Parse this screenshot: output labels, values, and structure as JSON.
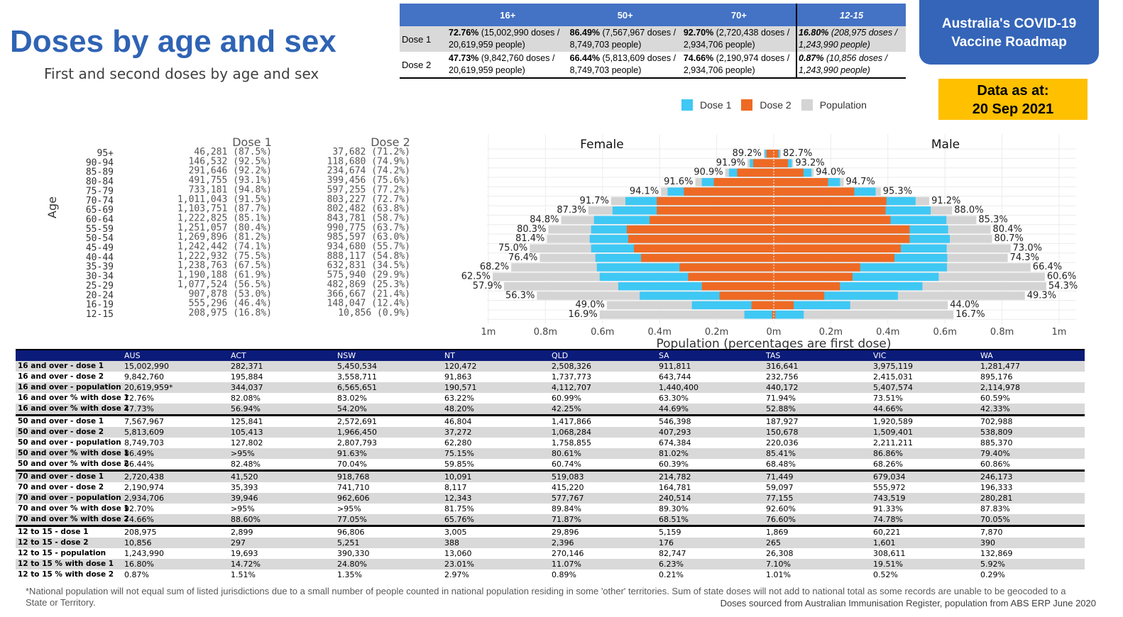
{
  "header": {
    "title": "Doses by age and sex",
    "subtitle": "First and second doses by age and sex",
    "roadmap_line1": "Australia's COVID-19",
    "roadmap_line2": "Vaccine Roadmap",
    "asat_line1": "Data as at:",
    "asat_line2": "20 Sep 2021"
  },
  "summary": {
    "columns": [
      "16+",
      "50+",
      "70+",
      "12-15"
    ],
    "rows": [
      {
        "label": "Dose 1",
        "cells": [
          {
            "pct": "72.76%",
            "rest": " (15,002,990 doses / 20,619,959 people)"
          },
          {
            "pct": "86.49%",
            "rest": " (7,567,967 doses / 8,749,703 people)"
          },
          {
            "pct": "92.70%",
            "rest": " (2,720,438 doses / 2,934,706 people)"
          },
          {
            "pct": "16.80%",
            "rest": " (208,975 doses / 1,243,990 people)"
          }
        ]
      },
      {
        "label": "Dose 2",
        "cells": [
          {
            "pct": "47.73%",
            "rest": " (9,842,760 doses / 20,619,959 people)"
          },
          {
            "pct": "66.44%",
            "rest": " (5,813,609 doses / 8,749,703 people)"
          },
          {
            "pct": "74.66%",
            "rest": " (2,190,974 doses / 2,934,706 people)"
          },
          {
            "pct": "0.87%",
            "rest": " (10,856 doses / 1,243,990 people)"
          }
        ]
      }
    ]
  },
  "legend": {
    "items": [
      {
        "label": "Dose 1",
        "color": "#3fc8f4"
      },
      {
        "label": "Dose 2",
        "color": "#ee6a24"
      },
      {
        "label": "Population",
        "color": "#d4d4d4"
      }
    ]
  },
  "age_table": {
    "y_label": "Age",
    "dose1_header": "Dose 1",
    "dose2_header": "Dose 2",
    "rows": [
      {
        "age": "95+",
        "dose1": "46,281 (87.5%)",
        "dose2": "37,682 (71.2%)"
      },
      {
        "age": "90-94",
        "dose1": "146,532 (92.5%)",
        "dose2": "118,680 (74.9%)"
      },
      {
        "age": "85-89",
        "dose1": "291,646 (92.2%)",
        "dose2": "234,674 (74.2%)"
      },
      {
        "age": "80-84",
        "dose1": "491,755 (93.1%)",
        "dose2": "399,456 (75.6%)"
      },
      {
        "age": "75-79",
        "dose1": "733,181 (94.8%)",
        "dose2": "597,255 (77.2%)"
      },
      {
        "age": "70-74",
        "dose1": "1,011,043 (91.5%)",
        "dose2": "803,227 (72.7%)"
      },
      {
        "age": "65-69",
        "dose1": "1,103,751 (87.7%)",
        "dose2": "802,482 (63.8%)"
      },
      {
        "age": "60-64",
        "dose1": "1,222,825 (85.1%)",
        "dose2": "843,781 (58.7%)"
      },
      {
        "age": "55-59",
        "dose1": "1,251,057 (80.4%)",
        "dose2": "990,775 (63.7%)"
      },
      {
        "age": "50-54",
        "dose1": "1,269,896 (81.2%)",
        "dose2": "985,597 (63.0%)"
      },
      {
        "age": "45-49",
        "dose1": "1,242,442 (74.1%)",
        "dose2": "934,680 (55.7%)"
      },
      {
        "age": "40-44",
        "dose1": "1,222,932 (75.5%)",
        "dose2": "888,117 (54.8%)"
      },
      {
        "age": "35-39",
        "dose1": "1,238,763 (67.5%)",
        "dose2": "632,831 (34.5%)"
      },
      {
        "age": "30-34",
        "dose1": "1,190,188 (61.9%)",
        "dose2": "575,940 (29.9%)"
      },
      {
        "age": "25-29",
        "dose1": "1,077,524 (56.5%)",
        "dose2": "482,869 (25.3%)"
      },
      {
        "age": "20-24",
        "dose1": "907,878 (53.0%)",
        "dose2": "366,667 (21.4%)"
      },
      {
        "age": "16-19",
        "dose1": "555,296 (46.4%)",
        "dose2": "148,047 (12.4%)"
      },
      {
        "age": "12-15",
        "dose1": "208,975 (16.8%)",
        "dose2": "10,856 (0.9%)"
      }
    ]
  },
  "chart_data": {
    "type": "bar",
    "orientation": "horizontal-population-pyramid",
    "title_left": "Female",
    "title_right": "Male",
    "xlabel": "Population (percentages are first dose)",
    "x_ticks": [
      "1m",
      "0.8m",
      "0.6m",
      "0.4m",
      "0.2m",
      "0m",
      "0.2m",
      "0.4m",
      "0.6m",
      "0.8m",
      "1m"
    ],
    "xlim": [
      -1000000,
      1000000
    ],
    "categories": [
      "95+",
      "90-94",
      "85-89",
      "80-84",
      "75-79",
      "70-74",
      "65-69",
      "60-64",
      "55-59",
      "50-54",
      "45-49",
      "40-44",
      "35-39",
      "30-34",
      "25-29",
      "20-24",
      "16-19",
      "12-15"
    ],
    "female": {
      "population": [
        35000,
        92000,
        170000,
        275000,
        395000,
        570000,
        650000,
        745000,
        790000,
        795000,
        855000,
        820000,
        920000,
        985000,
        945000,
        830000,
        585000,
        610000
      ],
      "dose1": [
        31000,
        84000,
        157000,
        252000,
        372000,
        520000,
        565000,
        630000,
        640000,
        645000,
        640000,
        625000,
        620000,
        610000,
        545000,
        470000,
        287000,
        103000
      ],
      "dose2": [
        25000,
        72000,
        128000,
        210000,
        315000,
        410000,
        410000,
        435000,
        515000,
        510000,
        490000,
        465000,
        330000,
        300000,
        252000,
        190000,
        78000,
        6000
      ],
      "pct": [
        "89.2%",
        "91.9%",
        "90.9%",
        "91.6%",
        "94.1%",
        "91.7%",
        "87.3%",
        "84.8%",
        "80.3%",
        "81.4%",
        "75.0%",
        "76.4%",
        "68.2%",
        "62.5%",
        "57.9%",
        "56.3%",
        "49.0%",
        "16.9%"
      ]
    },
    "male": {
      "population": [
        25000,
        68000,
        140000,
        245000,
        375000,
        545000,
        625000,
        710000,
        760000,
        765000,
        830000,
        820000,
        900000,
        950000,
        955000,
        880000,
        610000,
        630000
      ],
      "dose1": [
        21000,
        63000,
        132000,
        232000,
        357000,
        497000,
        550000,
        605000,
        611000,
        617000,
        606000,
        608000,
        607000,
        578000,
        521000,
        435000,
        268000,
        105000
      ],
      "dose2": [
        16000,
        50000,
        104000,
        190000,
        282000,
        395000,
        392000,
        409000,
        476000,
        476000,
        445000,
        423000,
        303000,
        276000,
        232000,
        177000,
        70000,
        5000
      ],
      "pct": [
        "82.7%",
        "93.2%",
        "94.0%",
        "94.7%",
        "95.3%",
        "91.2%",
        "88.0%",
        "85.3%",
        "80.4%",
        "80.7%",
        "73.0%",
        "74.3%",
        "66.4%",
        "60.6%",
        "54.3%",
        "49.3%",
        "44.0%",
        "16.7%"
      ]
    }
  },
  "details": {
    "columns": [
      "",
      "AUS",
      "ACT",
      "NSW",
      "NT",
      "QLD",
      "SA",
      "TAS",
      "VIC",
      "WA"
    ],
    "rows": [
      {
        "label": "16 and over - dose 1",
        "values": [
          "15,002,990",
          "282,371",
          "5,450,534",
          "120,472",
          "2,508,326",
          "911,811",
          "316,641",
          "3,975,119",
          "1,281,477"
        ]
      },
      {
        "label": "16 and over - dose 2",
        "values": [
          "9,842,760",
          "195,884",
          "3,558,711",
          "91,863",
          "1,737,773",
          "643,744",
          "232,756",
          "2,415,031",
          "895,176"
        ]
      },
      {
        "label": "16 and over - population",
        "values": [
          "20,619,959*",
          "344,037",
          "6,565,651",
          "190,571",
          "4,112,707",
          "1,440,400",
          "440,172",
          "5,407,574",
          "2,114,978"
        ]
      },
      {
        "label": "16 and over % with dose 1",
        "values": [
          "72.76%",
          "82.08%",
          "83.02%",
          "63.22%",
          "60.99%",
          "63.30%",
          "71.94%",
          "73.51%",
          "60.59%"
        ]
      },
      {
        "label": "16 and over % with dose 2",
        "values": [
          "47.73%",
          "56.94%",
          "54.20%",
          "48.20%",
          "42.25%",
          "44.69%",
          "52.88%",
          "44.66%",
          "42.33%"
        ]
      },
      {
        "label": "50 and over - dose 1",
        "values": [
          "7,567,967",
          "125,841",
          "2,572,691",
          "46,804",
          "1,417,866",
          "546,398",
          "187,927",
          "1,920,589",
          "702,988"
        ]
      },
      {
        "label": "50 and over - dose 2",
        "values": [
          "5,813,609",
          "105,413",
          "1,966,450",
          "37,272",
          "1,068,284",
          "407,293",
          "150,678",
          "1,509,401",
          "538,809"
        ]
      },
      {
        "label": "50 and over - population",
        "values": [
          "8,749,703",
          "127,802",
          "2,807,793",
          "62,280",
          "1,758,855",
          "674,384",
          "220,036",
          "2,211,211",
          "885,370"
        ]
      },
      {
        "label": "50 and over % with dose 1",
        "values": [
          "86.49%",
          ">95%",
          "91.63%",
          "75.15%",
          "80.61%",
          "81.02%",
          "85.41%",
          "86.86%",
          "79.40%"
        ]
      },
      {
        "label": "50 and over % with dose 2",
        "values": [
          "66.44%",
          "82.48%",
          "70.04%",
          "59.85%",
          "60.74%",
          "60.39%",
          "68.48%",
          "68.26%",
          "60.86%"
        ]
      },
      {
        "label": "70 and over - dose 1",
        "values": [
          "2,720,438",
          "41,520",
          "918,768",
          "10,091",
          "519,083",
          "214,782",
          "71,449",
          "679,034",
          "246,173"
        ]
      },
      {
        "label": "70 and over - dose 2",
        "values": [
          "2,190,974",
          "35,393",
          "741,710",
          "8,117",
          "415,220",
          "164,781",
          "59,097",
          "555,972",
          "196,333"
        ]
      },
      {
        "label": "70 and over - population",
        "values": [
          "2,934,706",
          "39,946",
          "962,606",
          "12,343",
          "577,767",
          "240,514",
          "77,155",
          "743,519",
          "280,281"
        ]
      },
      {
        "label": "70 and over % with dose 1",
        "values": [
          "92.70%",
          ">95%",
          ">95%",
          "81.75%",
          "89.84%",
          "89.30%",
          "92.60%",
          "91.33%",
          "87.83%"
        ]
      },
      {
        "label": "70 and over % with dose 2",
        "values": [
          "74.66%",
          "88.60%",
          "77.05%",
          "65.76%",
          "71.87%",
          "68.51%",
          "76.60%",
          "74.78%",
          "70.05%"
        ]
      },
      {
        "label": "12 to 15 - dose 1",
        "values": [
          "208,975",
          "2,899",
          "96,806",
          "3,005",
          "29,896",
          "5,159",
          "1,869",
          "60,221",
          "7,870"
        ]
      },
      {
        "label": "12 to 15 - dose 2",
        "values": [
          "10,856",
          "297",
          "5,251",
          "388",
          "2,396",
          "176",
          "265",
          "1,601",
          "390"
        ]
      },
      {
        "label": "12 to 15 - population",
        "values": [
          "1,243,990",
          "19,693",
          "390,330",
          "13,060",
          "270,146",
          "82,747",
          "26,308",
          "308,611",
          "132,869"
        ]
      },
      {
        "label": "12 to 15 % with dose 1",
        "values": [
          "16.80%",
          "14.72%",
          "24.80%",
          "23.01%",
          "11.07%",
          "6.23%",
          "7.10%",
          "19.51%",
          "5.92%"
        ]
      },
      {
        "label": "12 to 15 % with dose 2",
        "values": [
          "0.87%",
          "1.51%",
          "1.35%",
          "2.97%",
          "0.89%",
          "0.21%",
          "1.01%",
          "0.52%",
          "0.29%"
        ]
      }
    ]
  },
  "footer": {
    "footnote": "*National population will not equal sum of listed jurisdictions due to a small number of people counted in national population residing in some 'other' territories. Sum of state doses will not add to national total as some records are unable to be geocoded to a State or Territory.",
    "source": "Doses sourced from Australian Immunisation Register, population from ABS ERP June 2020"
  }
}
